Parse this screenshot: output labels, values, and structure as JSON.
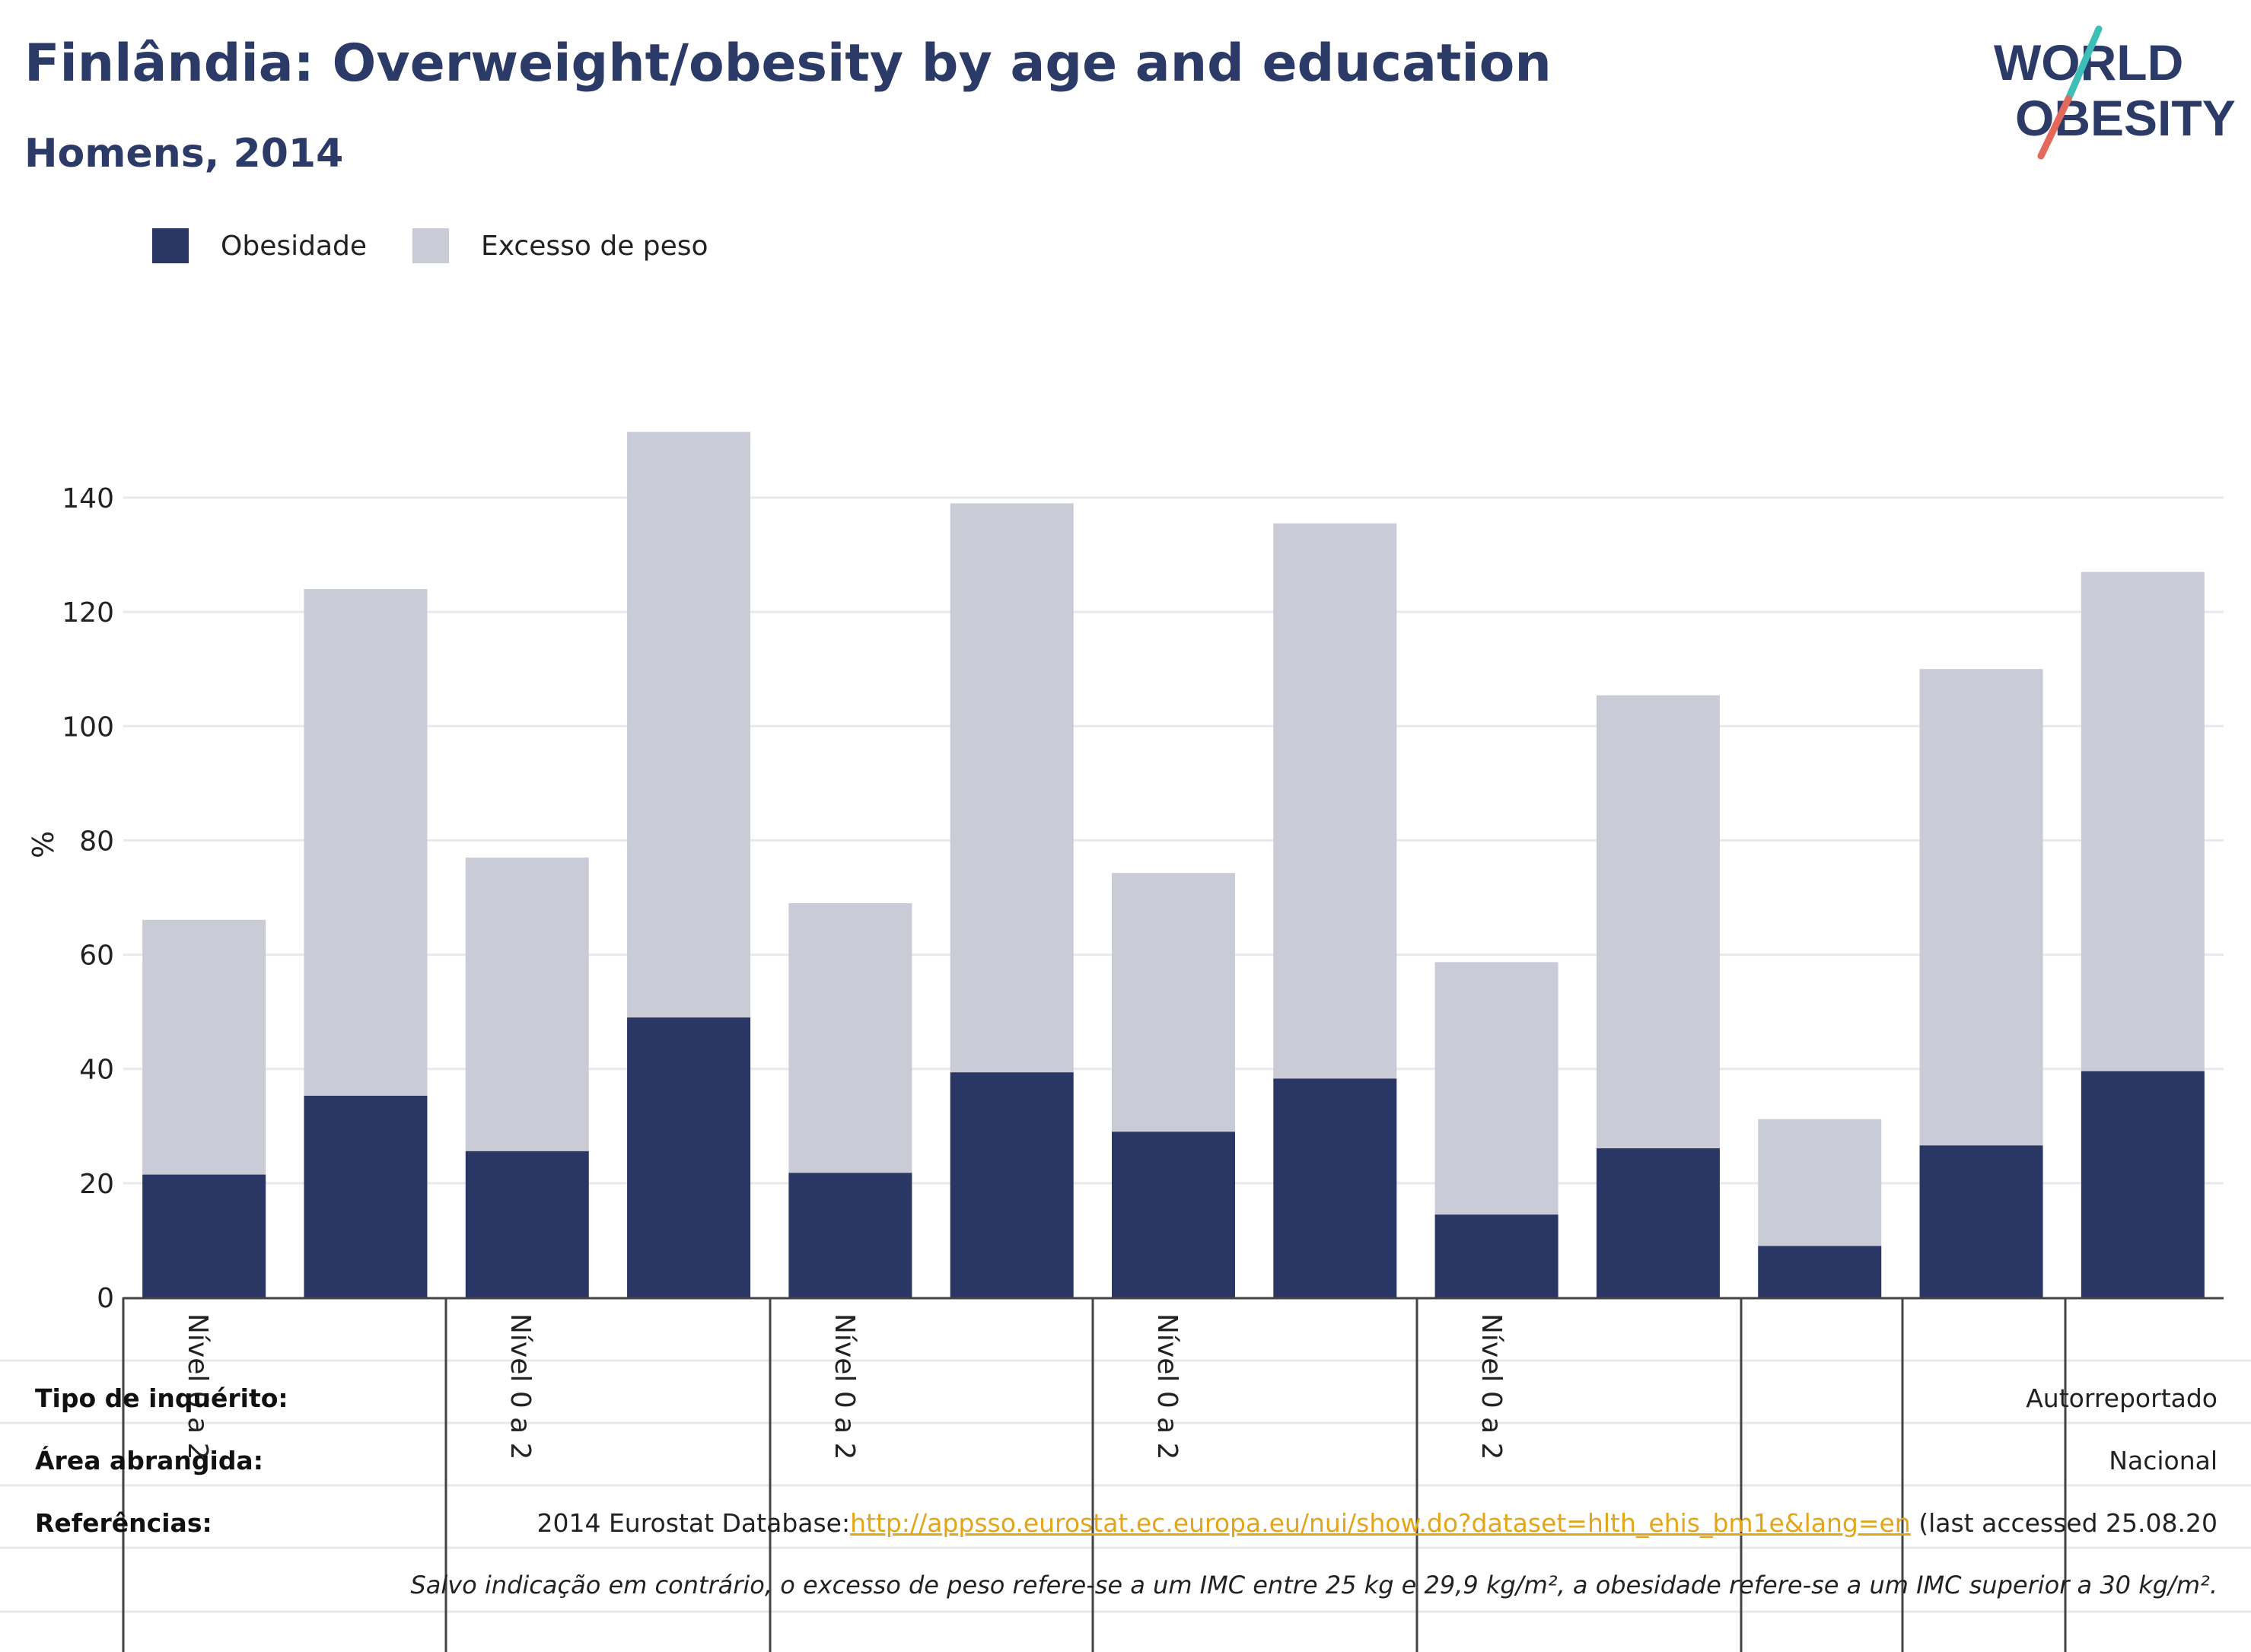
{
  "header": {
    "title": "Finlândia: Overweight/obesity by age and education",
    "subtitle": "Homens, 2014"
  },
  "logo": {
    "line1": "WORLD",
    "line2": "OBESITY",
    "accent_teal": "#3dbfb8",
    "accent_coral": "#e4695a",
    "text_color": "#2b3a67"
  },
  "colors": {
    "obesity": "#2a3663",
    "overweight": "#c9cbd6",
    "grid": "#e8e8ee",
    "axis": "#444444"
  },
  "chart_data": {
    "type": "bar",
    "stacked": true,
    "ylabel": "%",
    "ylim": [
      0,
      150
    ],
    "yticks": [
      0,
      20,
      40,
      60,
      80,
      100,
      120,
      140
    ],
    "grid": true,
    "legend_position": "top-left",
    "x_group_labels": [
      "Nível 0 a 2",
      "Nível 0 a 2",
      "Nível 0 a 2",
      "Nível 0 a 2",
      "Nível 0 a 2"
    ],
    "series": [
      {
        "name": "Obesidade",
        "values": [
          21.5,
          35.3,
          25.6,
          49.0,
          21.8,
          39.4,
          29.0,
          38.3,
          14.5,
          26.1,
          9.0,
          26.6,
          39.6
        ]
      },
      {
        "name": "Excesso de peso",
        "values": [
          44.6,
          88.7,
          51.4,
          102.5,
          47.2,
          99.6,
          45.3,
          97.2,
          44.2,
          79.3,
          22.2,
          83.4,
          87.4
        ]
      }
    ]
  },
  "footer": {
    "survey_label": "Tipo de inquérito:",
    "survey_value": "Autorreportado",
    "area_label": "Área abrangida:",
    "area_value": "Nacional",
    "refs_label": "Referências:",
    "refs_prefix": "2014 Eurostat Database:",
    "refs_link": "http://appsso.eurostat.ec.europa.eu/nui/show.do?dataset=hlth_ehis_bm1e&lang=en",
    "refs_suffix": " (last accessed 25.08.20",
    "note": "Salvo indicação em contrário, o excesso de peso refere-se a um IMC entre 25 kg e 29,9 kg/m², a obesidade refere-se a um IMC superior a 30 kg/m²."
  }
}
